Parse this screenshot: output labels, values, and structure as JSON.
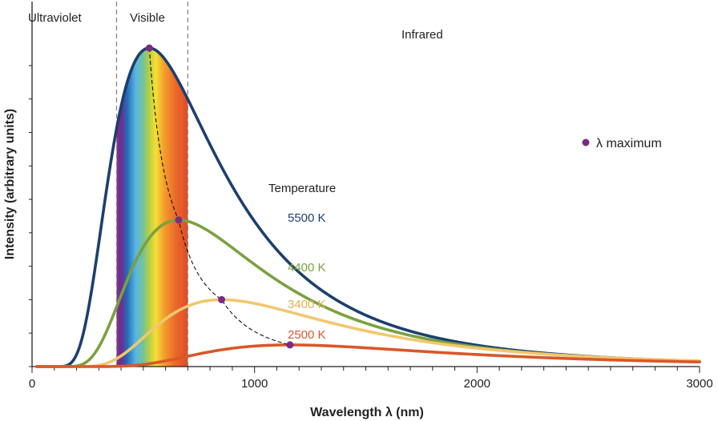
{
  "chart_data": {
    "type": "line",
    "title": "",
    "xlabel": "Wavelength λ (nm)",
    "ylabel": "Intensity (arbitrary units)",
    "xlim": [
      0,
      3000
    ],
    "ylim": [
      0,
      1
    ],
    "x_ticks": [
      0,
      1000,
      2000,
      3000
    ],
    "x_tick_labels": [
      "0",
      "1000",
      "2000",
      "3000"
    ],
    "x_minor_step": 100,
    "y_minor_step": 0.105,
    "regions": [
      {
        "name": "ultraviolet",
        "label": "Ultraviolet",
        "range": [
          0,
          380
        ]
      },
      {
        "name": "visible",
        "label": "Visible",
        "range": [
          380,
          700
        ]
      },
      {
        "name": "infrared",
        "label": "Infrared",
        "range": [
          700,
          3000
        ]
      }
    ],
    "legend_title": "Temperature",
    "marker_legend": "λ maximum",
    "series": [
      {
        "name": "5500 K",
        "temperature": 5500,
        "color": "#1d3f6e",
        "peak_wavelength": 527,
        "peak_intensity": 1.0
      },
      {
        "name": "4400 K",
        "temperature": 4400,
        "color": "#7aa13f",
        "peak_wavelength": 659,
        "peak_intensity": 0.46
      },
      {
        "name": "3400 K",
        "temperature": 3400,
        "color": "#f2c76e",
        "peak_wavelength": 852,
        "peak_intensity": 0.21
      },
      {
        "name": "2500 K",
        "temperature": 2500,
        "color": "#d9572b",
        "peak_wavelength": 1159,
        "peak_intensity": 0.068
      }
    ]
  },
  "colors": {
    "axis": "#222222",
    "marker": "#7b2a86",
    "divider": "#888888"
  }
}
